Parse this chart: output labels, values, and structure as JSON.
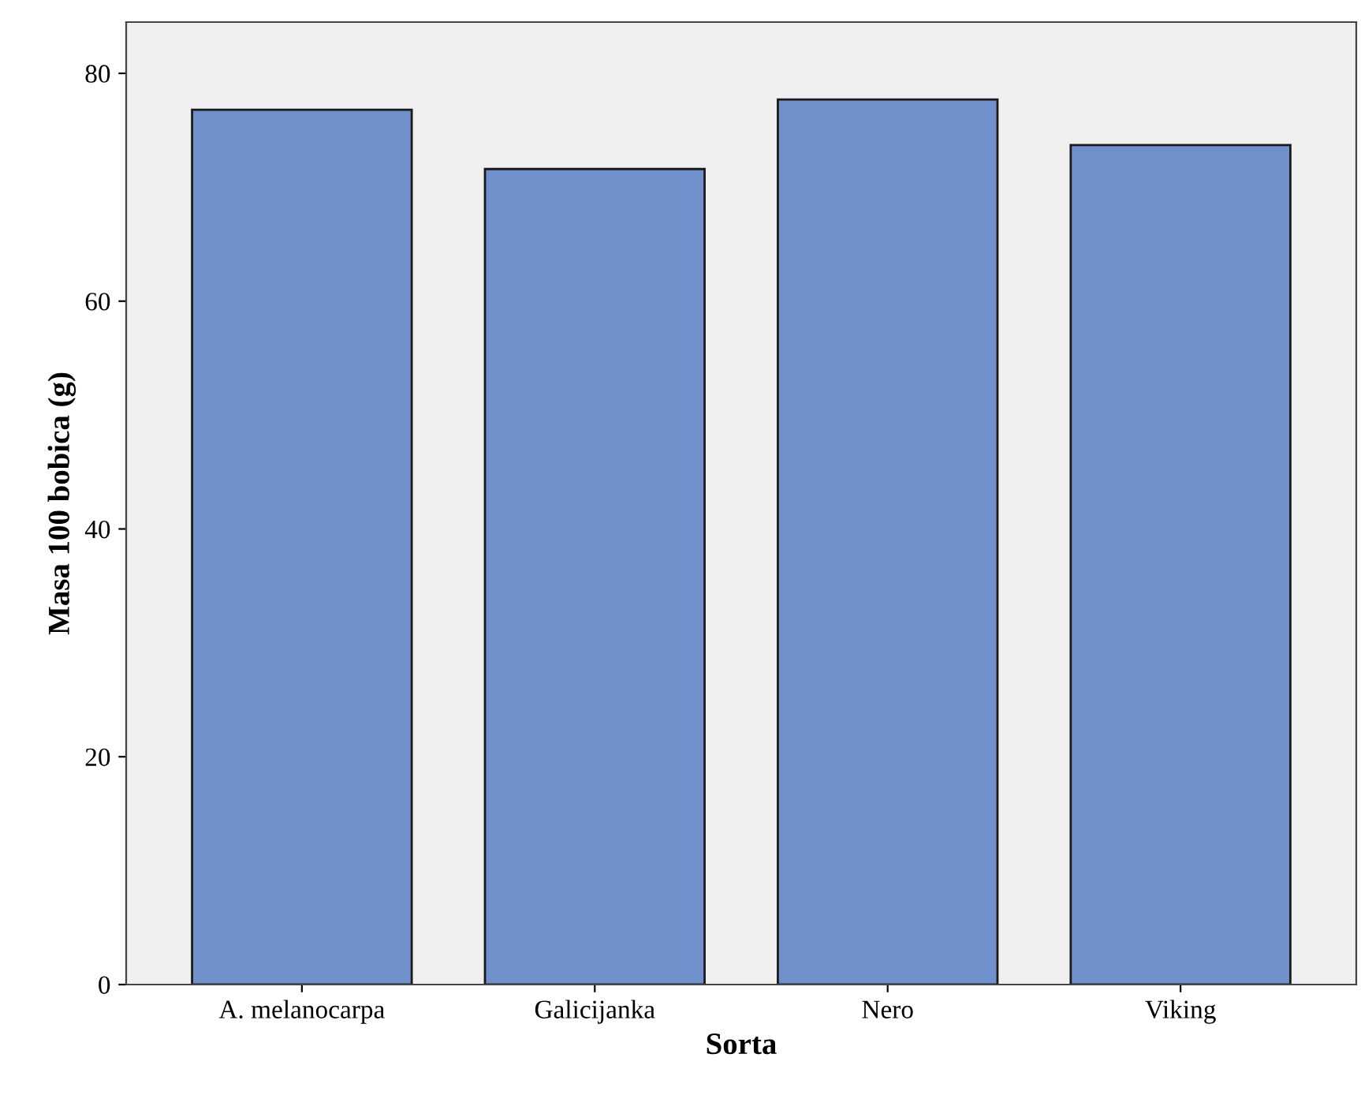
{
  "chart_data": {
    "type": "bar",
    "xlabel": "Sorta",
    "ylabel": "Masa 100 bobica (g)",
    "categories": [
      "A. melanocarpa",
      "Galicijanka",
      "Nero",
      "Viking"
    ],
    "values": [
      76.8,
      71.6,
      77.7,
      73.7
    ],
    "color": "#7090cc",
    "ylim": [
      0,
      84.5
    ],
    "yticks": [
      0,
      20,
      40,
      60,
      80
    ],
    "grid": false
  }
}
